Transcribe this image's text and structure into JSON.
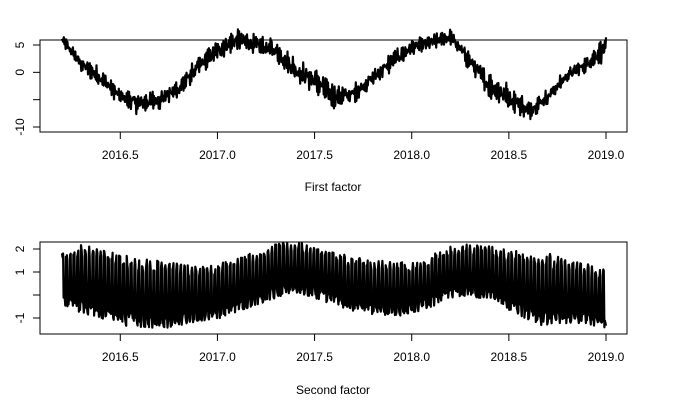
{
  "chart_data": [
    {
      "type": "line",
      "xlabel": "First factor",
      "ylabel": "",
      "xlim": [
        2016.2,
        2019.0
      ],
      "ylim": [
        -10,
        9
      ],
      "x_ticks": [
        2016.5,
        2017.0,
        2017.5,
        2018.0,
        2018.5,
        2019.0
      ],
      "x_tick_labels": [
        "2016.5",
        "2017.0",
        "2017.5",
        "2018.0",
        "2018.5",
        "2019.0"
      ],
      "y_ticks": [
        -10,
        0,
        5
      ],
      "y_tick_labels": [
        "-10",
        "0",
        "5"
      ],
      "series_color": "#000000",
      "x": [
        2016.2,
        2016.3,
        2016.4,
        2016.5,
        2016.6,
        2016.7,
        2016.8,
        2016.9,
        2017.0,
        2017.1,
        2017.2,
        2017.3,
        2017.4,
        2017.5,
        2017.6,
        2017.7,
        2017.8,
        2017.9,
        2018.0,
        2018.1,
        2018.2,
        2018.3,
        2018.4,
        2018.5,
        2018.6,
        2018.7,
        2018.8,
        2018.9,
        2019.0
      ],
      "upper": [
        7,
        3,
        1,
        -3,
        -3.5,
        -3,
        -1,
        3,
        6,
        8,
        7,
        6,
        3,
        1,
        -2,
        -2,
        1,
        4,
        6,
        7,
        8,
        4,
        0,
        -2,
        -5,
        -3,
        1,
        3,
        7
      ],
      "lower": [
        5,
        0,
        -3,
        -6,
        -8,
        -7,
        -5,
        -1,
        2,
        4,
        3,
        2,
        -2,
        -4,
        -7,
        -6,
        -3,
        0,
        3,
        4,
        5,
        0,
        -5,
        -7,
        -9,
        -6,
        -2,
        0,
        2
      ]
    },
    {
      "type": "line",
      "xlabel": "Second factor",
      "ylabel": "",
      "xlim": [
        2016.2,
        2019.0
      ],
      "ylim": [
        -1.4,
        2.2
      ],
      "x_ticks": [
        2016.5,
        2017.0,
        2017.5,
        2018.0,
        2018.5,
        2019.0
      ],
      "x_tick_labels": [
        "2016.5",
        "2017.0",
        "2017.5",
        "2018.0",
        "2018.5",
        "2019.0"
      ],
      "y_ticks": [
        -1,
        1,
        2
      ],
      "y_tick_labels": [
        "-1",
        "1",
        "2"
      ],
      "series_color": "#000000",
      "x": [
        2016.2,
        2016.3,
        2016.4,
        2016.5,
        2016.6,
        2016.7,
        2016.8,
        2016.9,
        2017.0,
        2017.1,
        2017.2,
        2017.3,
        2017.4,
        2017.5,
        2017.6,
        2017.7,
        2017.8,
        2017.9,
        2018.0,
        2018.1,
        2018.2,
        2018.3,
        2018.4,
        2018.5,
        2018.6,
        2018.7,
        2018.8,
        2018.9,
        2019.0
      ],
      "upper": [
        1.6,
        1.9,
        1.7,
        1.5,
        1.3,
        1.2,
        1.1,
        1.0,
        1.1,
        1.4,
        1.7,
        2.0,
        2.1,
        1.9,
        1.7,
        1.4,
        1.3,
        1.2,
        1.2,
        1.5,
        1.9,
        2.0,
        1.9,
        1.7,
        1.6,
        1.5,
        1.3,
        1.1,
        0.9
      ],
      "lower": [
        -0.2,
        -0.5,
        -0.7,
        -1.0,
        -1.1,
        -1.2,
        -1.1,
        -0.9,
        -0.8,
        -0.5,
        -0.2,
        0.1,
        0.3,
        0.1,
        -0.2,
        -0.5,
        -0.6,
        -0.7,
        -0.6,
        -0.3,
        0.1,
        0.2,
        0.0,
        -0.4,
        -0.8,
        -1.1,
        -1.0,
        -1.0,
        -1.2
      ]
    }
  ]
}
